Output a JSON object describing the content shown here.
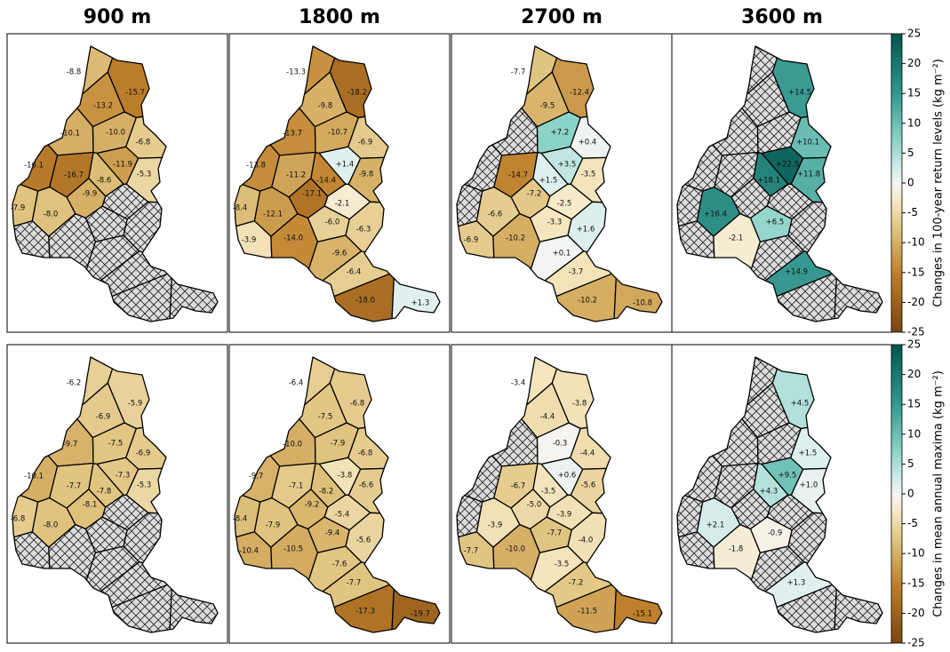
{
  "column_titles": [
    "900 m",
    "1800 m",
    "2700 m",
    "3600 m"
  ],
  "colorbar": {
    "lim": [
      -25,
      25
    ],
    "ticks": [
      25,
      20,
      15,
      10,
      5,
      0,
      -5,
      -10,
      -15,
      -20,
      -25
    ]
  },
  "rows": [
    {
      "colorbar_label": "Changes in 100-year return levels (kg m⁻²)",
      "panels": [
        {
          "values": [
            -8.8,
            -15.7,
            -13.2,
            -10.0,
            -6.8,
            -10.1,
            -11.9,
            -5.3,
            -16.1,
            -16.7,
            -8.6,
            -9.9,
            null,
            -7.9,
            -8.0,
            null,
            null,
            null,
            null,
            null,
            null,
            null,
            null
          ],
          "value_labels": [
            "-8.8",
            "-15.7",
            "-13.2",
            "-10.0",
            "-6.8",
            "-10.1",
            "-11.9",
            "-5.3",
            "-16.1",
            "-16.7",
            "-8.6",
            "-9.9",
            null,
            "-7.9",
            "-8.0",
            null,
            null,
            null,
            null,
            null,
            null,
            null,
            null
          ]
        },
        {
          "values": [
            -13.3,
            -18.2,
            -9.8,
            -10.7,
            -6.9,
            -13.7,
            1.4,
            -9.8,
            -13.8,
            -11.2,
            -14.4,
            -17.1,
            -2.1,
            -8.4,
            -12.1,
            -6.0,
            -6.3,
            -3.9,
            -14.0,
            -9.6,
            -6.4,
            -18.0,
            1.3
          ],
          "value_labels": [
            "-13.3",
            "-18.2",
            "-9.8",
            "-10.7",
            "-6.9",
            "-13.7",
            "+1.4",
            "-9.8",
            "-13.8",
            "-11.2",
            "-14.4",
            "-17.1",
            "-2.1",
            "-8.4",
            "-12.1",
            "-6.0",
            "-6.3",
            "-3.9",
            "-14.0",
            "-9.6",
            "-6.4",
            "-18.0",
            "+1.3"
          ]
        },
        {
          "values": [
            -7.7,
            -12.4,
            -9.5,
            7.2,
            0.4,
            null,
            3.5,
            -3.5,
            null,
            -14.7,
            1.5,
            -7.2,
            -2.5,
            null,
            -6.6,
            -3.3,
            1.6,
            -6.9,
            -10.2,
            0.1,
            -3.7,
            -10.2,
            -10.8
          ],
          "value_labels": [
            "-7.7",
            "-12.4",
            "-9.5",
            "+7.2",
            "+0.4",
            null,
            "+3.5",
            "-3.5",
            null,
            "-14.7",
            "+1.5",
            "-7.2",
            "-2.5",
            null,
            "-6.6",
            "-3.3",
            "+1.6",
            "-6.9",
            "-10.2",
            "+0.1",
            "-3.7",
            "-10.2",
            "-10.8"
          ]
        },
        {
          "values": [
            null,
            14.5,
            null,
            null,
            10.1,
            null,
            22.5,
            11.8,
            null,
            null,
            18.1,
            null,
            null,
            null,
            16.4,
            6.5,
            null,
            null,
            -2.1,
            null,
            14.9,
            null,
            null
          ],
          "value_labels": [
            null,
            "+14.5",
            null,
            null,
            "+10.1",
            null,
            "+22.5",
            "+11.8",
            null,
            null,
            "+18.1",
            null,
            null,
            null,
            "+16.4",
            "+6.5",
            null,
            null,
            "-2.1",
            null,
            "+14.9",
            null,
            null
          ]
        }
      ]
    },
    {
      "colorbar_label": "Changes in mean annual maxima (kg m⁻²)",
      "panels": [
        {
          "values": [
            -6.2,
            -5.9,
            -6.9,
            -7.5,
            -6.9,
            -9.7,
            -7.3,
            -5.3,
            -10.1,
            -7.7,
            -7.8,
            -8.1,
            null,
            -6.8,
            -8.0,
            null,
            null,
            null,
            null,
            null,
            null,
            null,
            null
          ],
          "value_labels": [
            "-6.2",
            "-5.9",
            "-6.9",
            "-7.5",
            "-6.9",
            "-9.7",
            "-7.3",
            "-5.3",
            "-10.1",
            "-7.7",
            "-7.8",
            "-8.1",
            null,
            "-6.8",
            "-8.0",
            null,
            null,
            null,
            null,
            null,
            null,
            null,
            null
          ]
        },
        {
          "values": [
            -6.4,
            -6.8,
            -7.5,
            -7.9,
            -6.8,
            -10.0,
            -3.8,
            -6.6,
            -9.7,
            -7.1,
            -8.2,
            -9.2,
            -5.4,
            -8.4,
            -7.9,
            -9.4,
            -5.6,
            -10.4,
            -10.5,
            -7.6,
            -7.7,
            -17.3,
            -19.7
          ],
          "value_labels": [
            "-6.4",
            "-6.8",
            "-7.5",
            "-7.9",
            "-6.8",
            "-10.0",
            "-3.8",
            "-6.6",
            "-9.7",
            "-7.1",
            "-8.2",
            "-9.2",
            "-5.4",
            "-8.4",
            "-7.9",
            "-9.4",
            "-5.6",
            "-10.4",
            "-10.5",
            "-7.6",
            "-7.7",
            "-17.3",
            "-19.7"
          ]
        },
        {
          "values": [
            -3.4,
            -3.8,
            -4.4,
            -0.3,
            -4.4,
            null,
            0.6,
            -5.6,
            null,
            -6.7,
            -3.5,
            -5.0,
            -3.9,
            null,
            -3.9,
            -7.7,
            -4.0,
            -7.7,
            -10.0,
            -3.5,
            -7.2,
            -11.5,
            -15.1
          ],
          "value_labels": [
            "-3.4",
            "-3.8",
            "-4.4",
            "-0.3",
            "-4.4",
            null,
            "+0.6",
            "-5.6",
            null,
            "-6.7",
            "-3.5",
            "-5.0",
            "-3.9",
            null,
            "-3.9",
            "-7.7",
            "-4.0",
            "-7.7",
            "-10.0",
            "-3.5",
            "-7.2",
            "-11.5",
            "-15.1"
          ]
        },
        {
          "values": [
            null,
            4.5,
            null,
            null,
            1.5,
            null,
            9.5,
            1.0,
            null,
            null,
            4.3,
            null,
            null,
            null,
            2.1,
            -0.9,
            null,
            null,
            -1.8,
            null,
            1.3,
            null,
            null
          ],
          "value_labels": [
            null,
            "+4.5",
            null,
            null,
            "+1.5",
            null,
            "+9.5",
            "+1.0",
            null,
            null,
            "+4.3",
            null,
            null,
            null,
            "+2.1",
            "-0.9",
            null,
            null,
            "-1.8",
            null,
            "+1.3",
            null,
            null
          ]
        }
      ]
    }
  ]
}
